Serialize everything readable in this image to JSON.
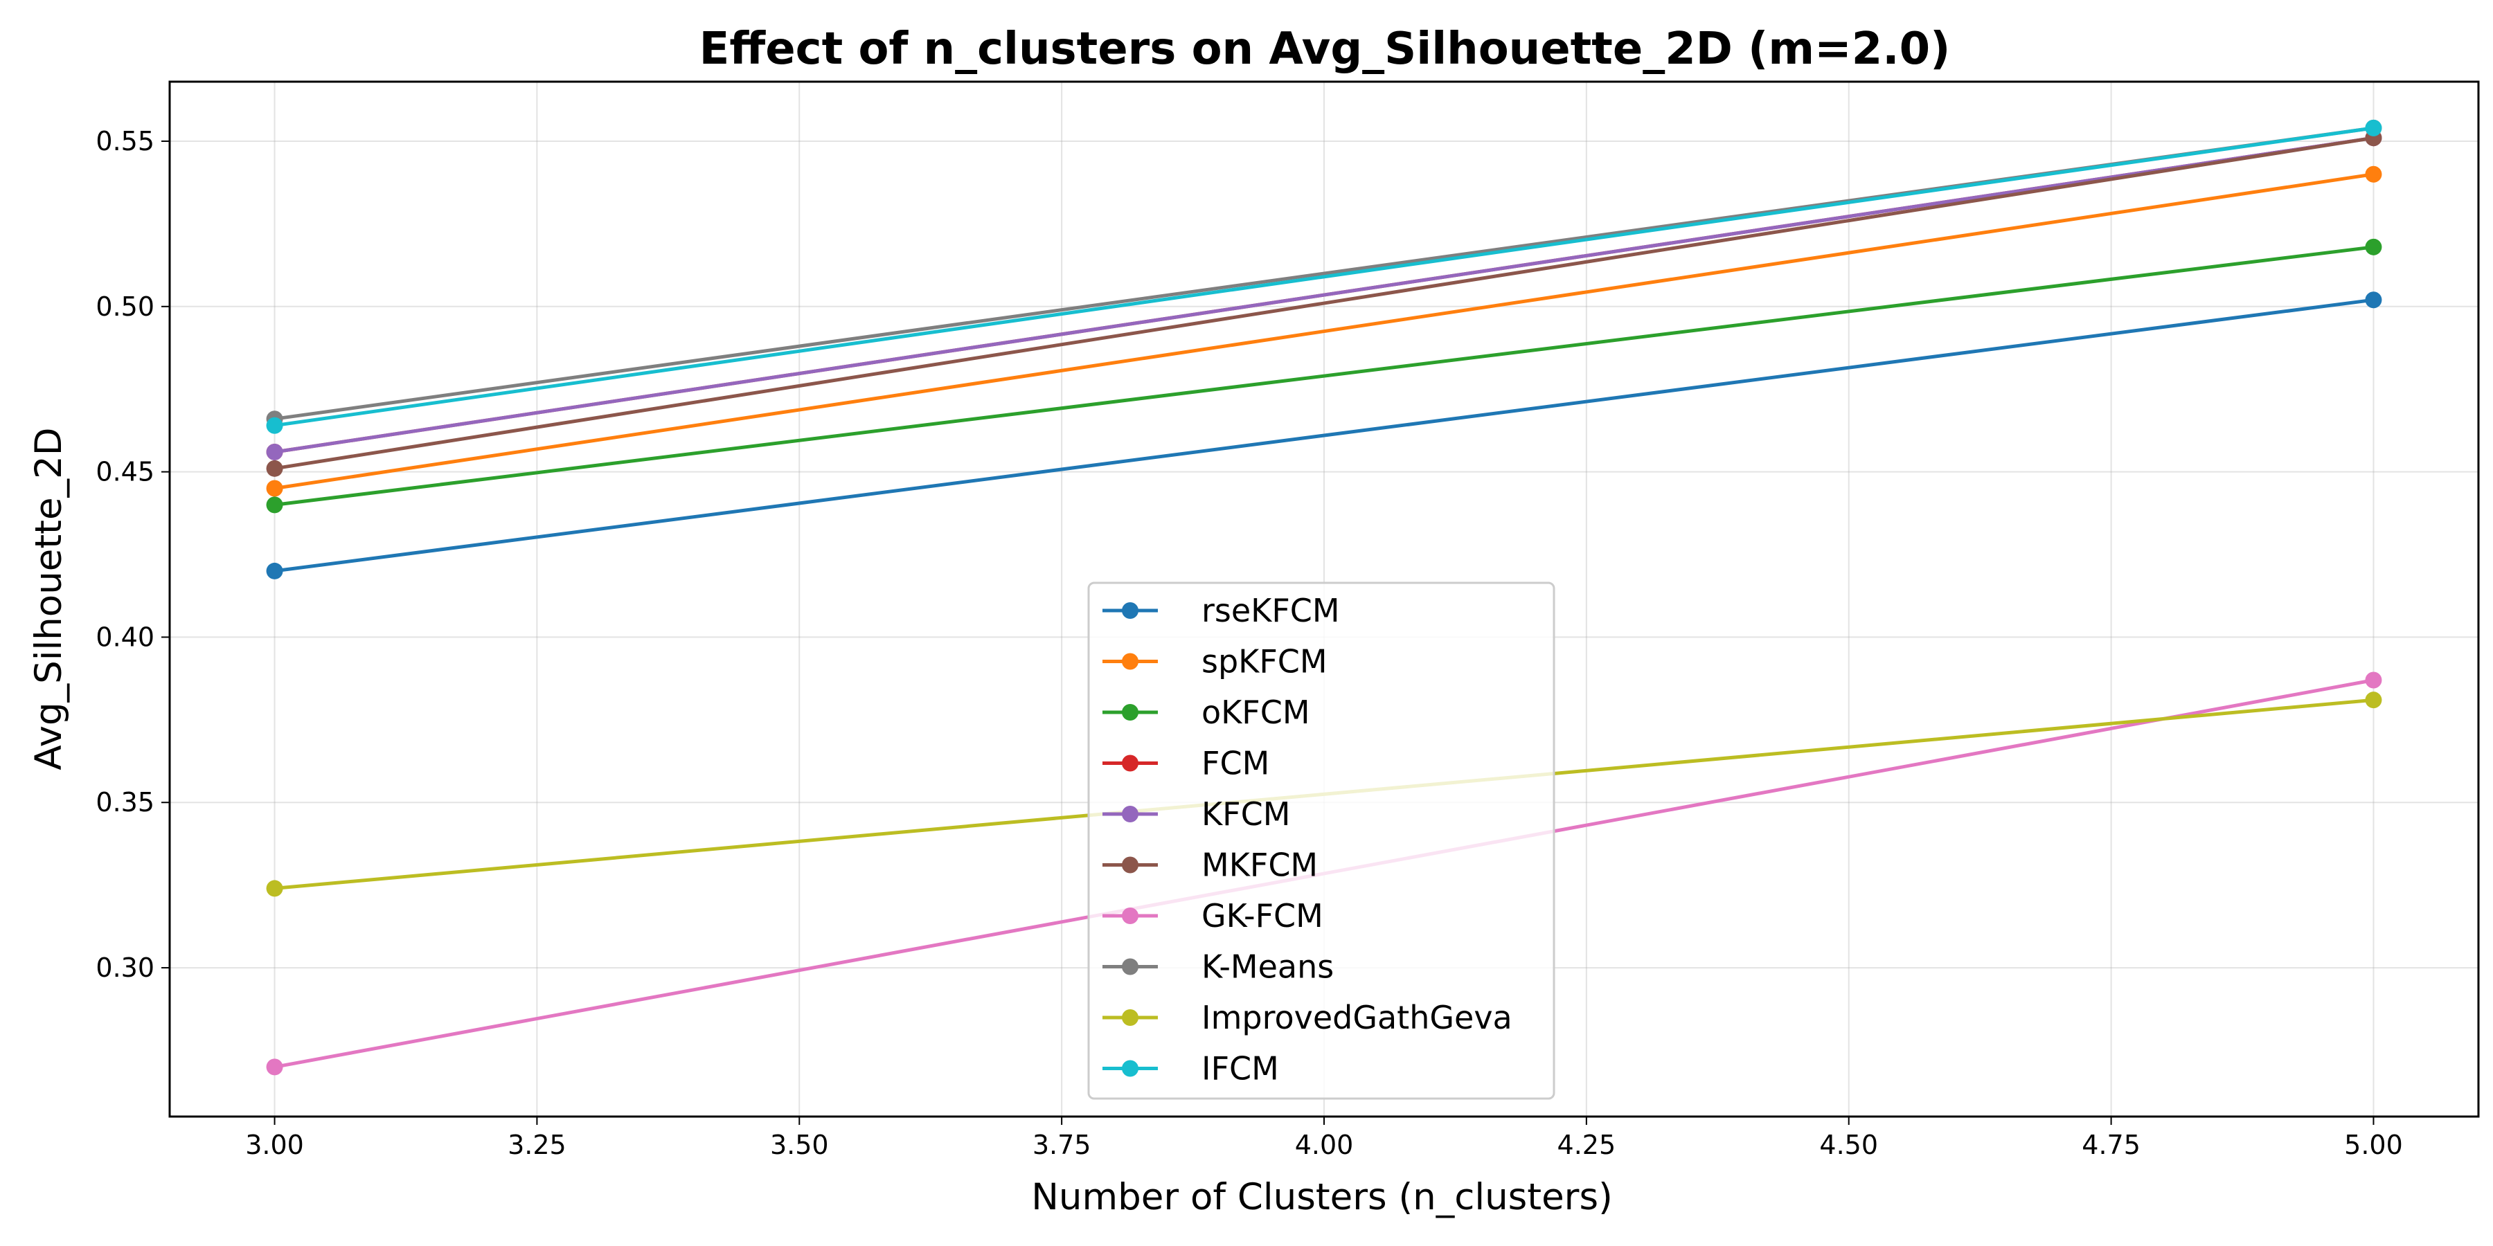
{
  "chart_data": {
    "type": "line",
    "title": "Effect of n_clusters on Avg_Silhouette_2D (m=2.0)",
    "xlabel": "Number of Clusters (n_clusters)",
    "ylabel": "Avg_Silhouette_2D",
    "x": [
      3.0,
      5.0
    ],
    "xlim": [
      2.9,
      5.1
    ],
    "ylim": [
      0.255,
      0.568
    ],
    "xticks": [
      "3.00",
      "3.25",
      "3.50",
      "3.75",
      "4.00",
      "4.25",
      "4.50",
      "4.75",
      "5.00"
    ],
    "yticks": [
      "0.30",
      "0.35",
      "0.40",
      "0.45",
      "0.50",
      "0.55"
    ],
    "grid": true,
    "legend_position": "lower-center",
    "series": [
      {
        "name": "rseKFCM",
        "color": "#1f77b4",
        "values": [
          0.42,
          0.502
        ]
      },
      {
        "name": "spKFCM",
        "color": "#ff7f0e",
        "values": [
          0.445,
          0.54
        ]
      },
      {
        "name": "oKFCM",
        "color": "#2ca02c",
        "values": [
          0.44,
          0.518
        ]
      },
      {
        "name": "FCM",
        "color": "#d62728",
        "values": [
          0.456,
          0.551
        ]
      },
      {
        "name": "KFCM",
        "color": "#9467bd",
        "values": [
          0.456,
          0.551
        ]
      },
      {
        "name": "MKFCM",
        "color": "#8c564b",
        "values": [
          0.451,
          0.551
        ]
      },
      {
        "name": "GK-FCM",
        "color": "#e377c2",
        "values": [
          0.27,
          0.387
        ]
      },
      {
        "name": "K-Means",
        "color": "#7f7f7f",
        "values": [
          0.466,
          0.554
        ]
      },
      {
        "name": "ImprovedGathGeva",
        "color": "#bcbd22",
        "values": [
          0.324,
          0.381
        ]
      },
      {
        "name": "IFCM",
        "color": "#17becf",
        "values": [
          0.464,
          0.554
        ]
      }
    ]
  }
}
